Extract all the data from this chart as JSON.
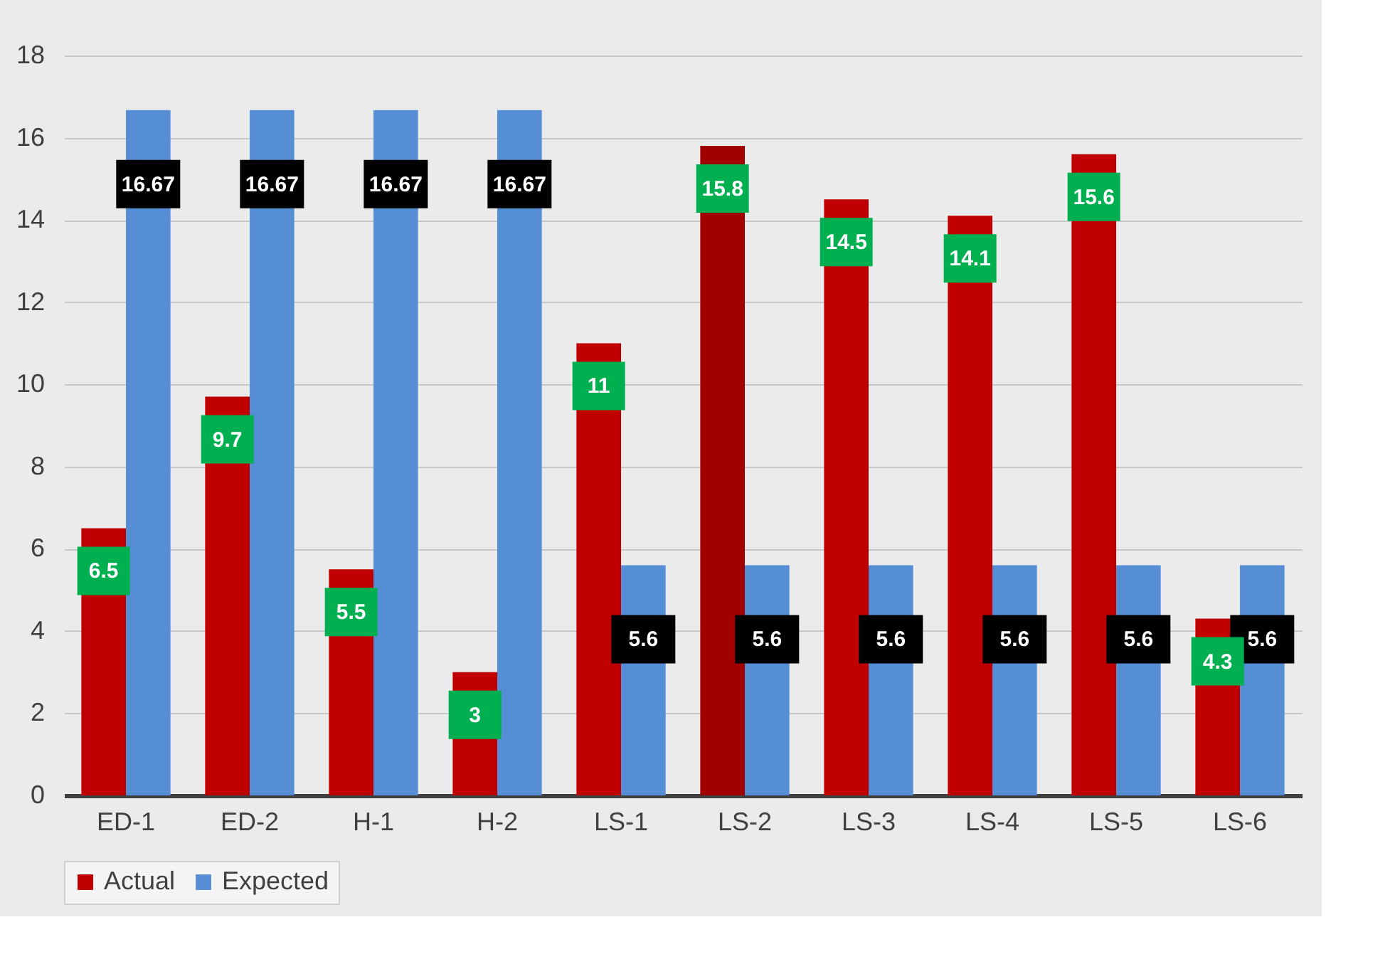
{
  "chart_data": {
    "type": "bar",
    "categories": [
      "ED-1",
      "ED-2",
      "H-1",
      "H-2",
      "LS-1",
      "LS-2",
      "LS-3",
      "LS-4",
      "LS-5",
      "LS-6"
    ],
    "series": [
      {
        "name": "Actual",
        "color": "#c00000",
        "colors": [
          "#c00000",
          "#c00000",
          "#c00000",
          "#c00000",
          "#c00000",
          "#a00000",
          "#c00000",
          "#c00000",
          "#c00000",
          "#c00000"
        ],
        "values": [
          6.5,
          9.7,
          5.5,
          3,
          11,
          15.8,
          14.5,
          14.1,
          15.6,
          4.3
        ]
      },
      {
        "name": "Expected",
        "color": "#558ed5",
        "values": [
          16.67,
          16.67,
          16.67,
          16.67,
          5.6,
          5.6,
          5.6,
          5.6,
          5.6,
          5.6
        ]
      }
    ],
    "ylim": [
      0,
      18
    ],
    "yticks": [
      0,
      2,
      4,
      6,
      8,
      10,
      12,
      14,
      16,
      18
    ],
    "grid": "y",
    "legend": "bottom",
    "data_labels": true
  }
}
